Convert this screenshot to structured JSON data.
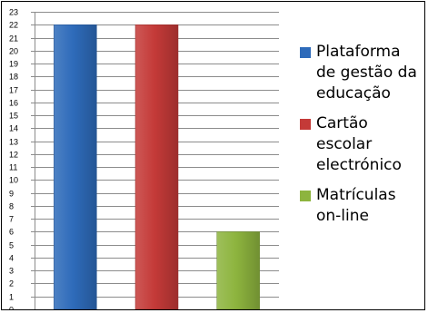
{
  "chart_data": {
    "type": "bar",
    "title": "",
    "xlabel": "",
    "ylabel": "",
    "categories": [
      "Plataforma de gestão da educação",
      "Cartão escolar electrónico",
      "Matrículas on-line"
    ],
    "values": [
      22,
      22,
      6
    ],
    "ylim": [
      0,
      23
    ],
    "y_ticks": [
      0,
      1,
      2,
      3,
      4,
      5,
      6,
      7,
      8,
      9,
      10,
      11,
      12,
      13,
      14,
      15,
      16,
      17,
      18,
      19,
      20,
      21,
      22,
      23
    ],
    "grid": true,
    "legend": {
      "placement": "right",
      "entries": [
        {
          "label": "Plataforma\nde gestão da\neducação",
          "color": "#2E6BBA"
        },
        {
          "label": "Cartão\nescolar\nelectrónico",
          "color": "#C43A38"
        },
        {
          "label": "Matrículas\non-line",
          "color": "#8DB43E"
        }
      ]
    },
    "bar_colors": [
      "#2E6BBA",
      "#C43A38",
      "#8DB43E"
    ]
  }
}
